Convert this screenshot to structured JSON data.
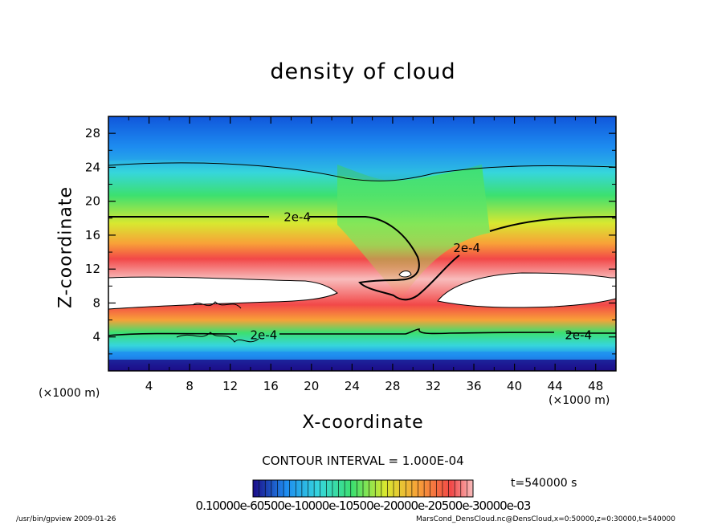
{
  "chart_data": {
    "type": "heatmap",
    "title": "density of cloud",
    "xlabel": "X-coordinate",
    "ylabel": "Z-coordinate",
    "x_unit_left": "(×1000 m)",
    "x_unit_right": "(×1000 m)",
    "xlim": [
      0,
      50
    ],
    "ylim": [
      0,
      30
    ],
    "x_ticks": [
      "4",
      "8",
      "12",
      "16",
      "20",
      "24",
      "28",
      "32",
      "36",
      "40",
      "44",
      "48"
    ],
    "y_ticks": [
      "4",
      "8",
      "12",
      "16",
      "20",
      "24",
      "28"
    ],
    "x_tick_values": [
      4,
      8,
      12,
      16,
      20,
      24,
      28,
      32,
      36,
      40,
      44,
      48
    ],
    "y_tick_values": [
      4,
      8,
      12,
      16,
      20,
      24,
      28
    ],
    "contour_interval": "CONTOUR INTERVAL = 1.000E-04",
    "contour_label": "2e-4",
    "contour_labels": [
      {
        "text": "2e-4",
        "x": 18.6,
        "y": 18.1
      },
      {
        "text": "2e-4",
        "x": 35.3,
        "y": 14.5
      },
      {
        "text": "2e-4",
        "x": 15.3,
        "y": 4.2
      },
      {
        "text": "2e-4",
        "x": 46.3,
        "y": 4.2
      }
    ],
    "time": "t=540000 s",
    "colorbar_labels": "0.10000e-60500e-10000e-10500e-20000e-20500e-30000e-03",
    "colors": {
      "top": "#0a3ad0",
      "blue": "#1e8cf0",
      "cyan": "#36d6dc",
      "green": "#3ce070",
      "yellow": "#d8e830",
      "orange": "#f8a038",
      "red": "#f24848",
      "pink": "#f8bcbc",
      "purple": "#1c0c88"
    }
  },
  "footer": {
    "left": "/usr/bin/gpview   2009-01-26",
    "right": "MarsCond_DensCloud.nc@DensCloud,x=0:50000,z=0:30000,t=540000"
  }
}
